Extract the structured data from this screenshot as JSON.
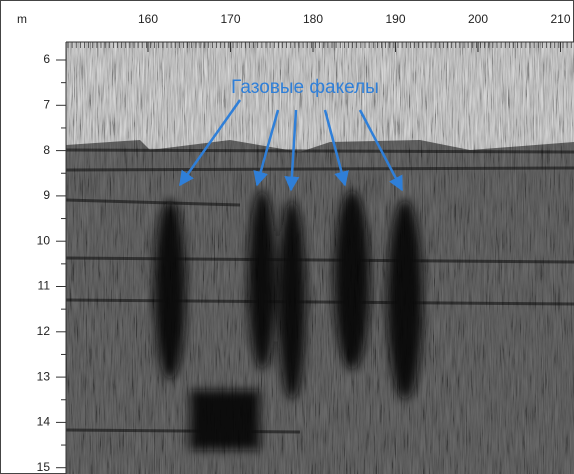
{
  "figure": {
    "x_unit": "m",
    "xticks": [
      160,
      170,
      180,
      190,
      200,
      210
    ],
    "yticks": [
      6,
      7,
      8,
      9,
      10,
      11,
      12,
      13,
      14,
      15
    ],
    "annotation": "Газовые факелы"
  }
}
